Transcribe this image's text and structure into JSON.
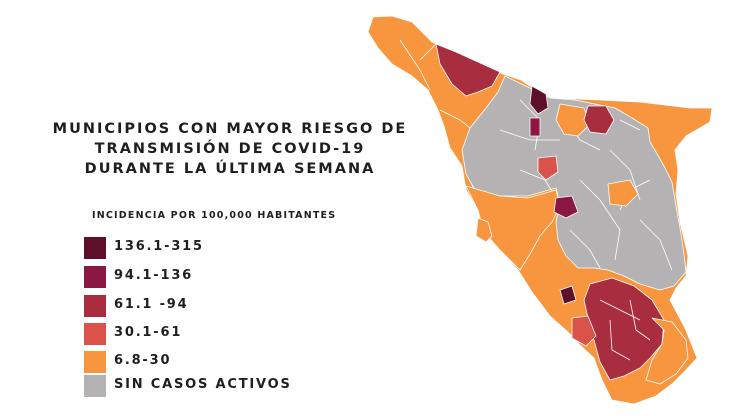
{
  "title": {
    "line1": "MUNICIPIOS CON MAYOR RIESGO DE",
    "line2": "TRANSMISIÓN DE COVID-19",
    "line3": "DURANTE LA ÚLTIMA SEMANA"
  },
  "legend": {
    "title": "INCIDENCIA POR 100,000 HABITANTES",
    "items": [
      {
        "label": "136.1-315",
        "color": "#5e0f2a"
      },
      {
        "label": "94.1-136",
        "color": "#8b1744"
      },
      {
        "label": "61.1 -94",
        "color": "#a82d3f"
      },
      {
        "label": "30.1-61",
        "color": "#d9534a"
      },
      {
        "label": "6.8-30",
        "color": "#f7963f"
      },
      {
        "label": "SIN CASOS ACTIVOS",
        "color": "#b5b2b3"
      }
    ]
  },
  "map": {
    "region": "sonora-state",
    "colors": {
      "very-high": "#5e0f2a",
      "high": "#8b1744",
      "medium-high": "#a82d3f",
      "medium": "#d9534a",
      "low": "#f7963f",
      "none": "#b5b2b3"
    }
  }
}
